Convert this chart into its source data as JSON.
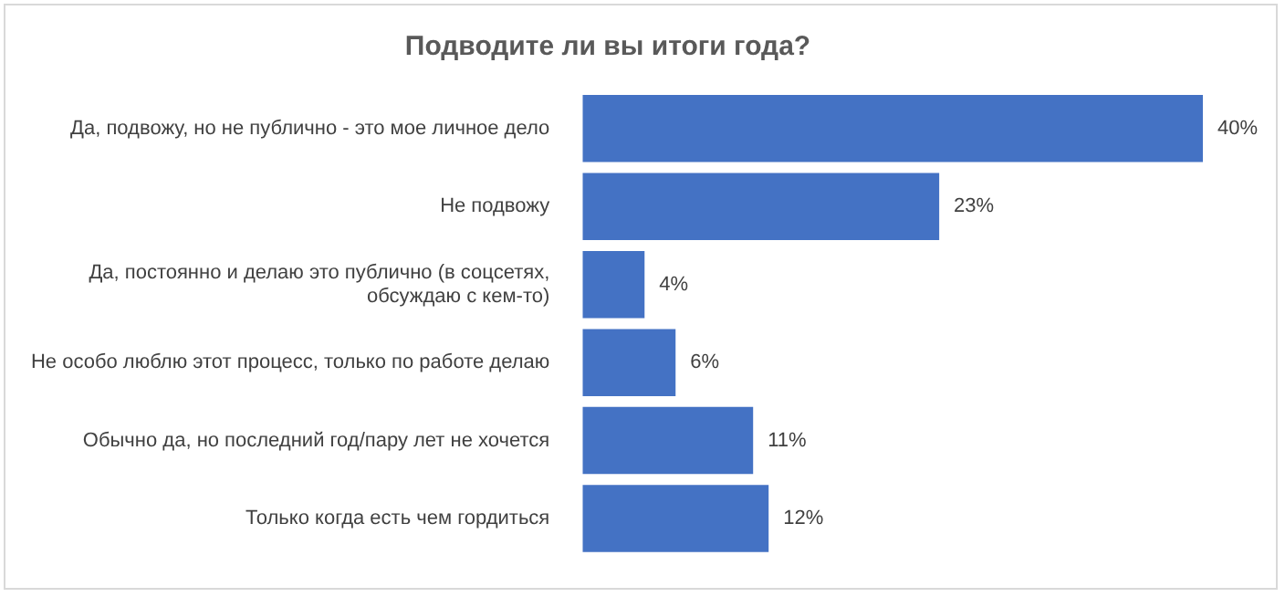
{
  "chart_data": {
    "type": "bar",
    "orientation": "horizontal",
    "title": "Подводите ли вы итоги года?",
    "categories": [
      "Да, подвожу, но не публично - это мое личное дело",
      "Не подвожу",
      "Да, постоянно и делаю это публично (в соцсетях, обсуждаю с кем-то)",
      "Не особо люблю этот процесс, только по работе делаю",
      "Обычно да, но последний год/пару лет не хочется",
      "Только когда есть чем гордиться"
    ],
    "values": [
      40,
      23,
      4,
      6,
      11,
      12
    ],
    "value_labels": [
      "40%",
      "23%",
      "4%",
      "6%",
      "11%",
      "12%"
    ],
    "color": "#4472c4",
    "tick_labels": "y"
  }
}
